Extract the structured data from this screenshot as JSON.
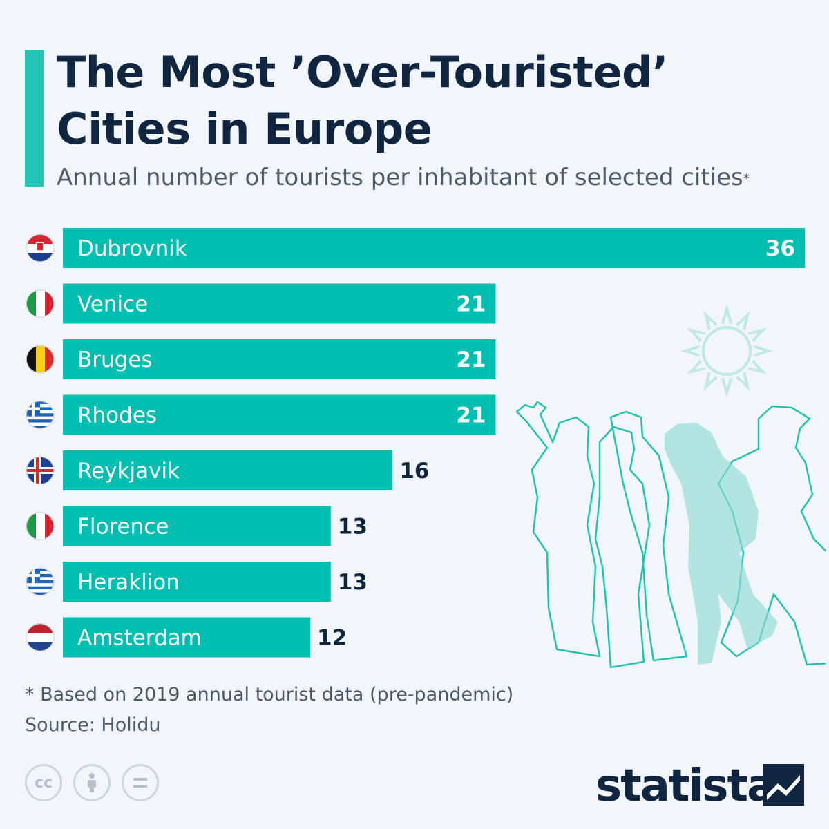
{
  "header": {
    "title": "The Most ’Over-Touristed’\nCities in Europe",
    "subtitle": "Annual number of tourists per inhabitant of selected cities",
    "subtitle_marker": "*"
  },
  "chart_data": {
    "type": "bar",
    "orientation": "horizontal",
    "title": "The Most ’Over-Touristed’ Cities in Europe",
    "subtitle": "Annual number of tourists per inhabitant of selected cities*",
    "categories": [
      "Dubrovnik",
      "Venice",
      "Bruges",
      "Rhodes",
      "Reykjavik",
      "Florence",
      "Heraklion",
      "Amsterdam"
    ],
    "countries": [
      "croatia",
      "italy",
      "belgium",
      "greece",
      "iceland",
      "italy",
      "greece",
      "netherlands"
    ],
    "values": [
      36,
      21,
      21,
      21,
      16,
      13,
      13,
      12
    ],
    "xlim": [
      0,
      36
    ],
    "xlabel": "",
    "ylabel": "",
    "grid": false,
    "bar_color": "#00bfb0"
  },
  "footer": {
    "note": "* Based on 2019 annual tourist data (pre-pandemic)",
    "source": "Source: Holidu",
    "brand": "statista",
    "license_icons": [
      "cc-icon",
      "attribution-icon",
      "no-derivatives-icon"
    ]
  },
  "colors": {
    "accent": "#1fc4b3",
    "bar": "#00bfb0",
    "title": "#0f2540",
    "text": "#4c5a6b",
    "background": "#f2f6fa"
  }
}
